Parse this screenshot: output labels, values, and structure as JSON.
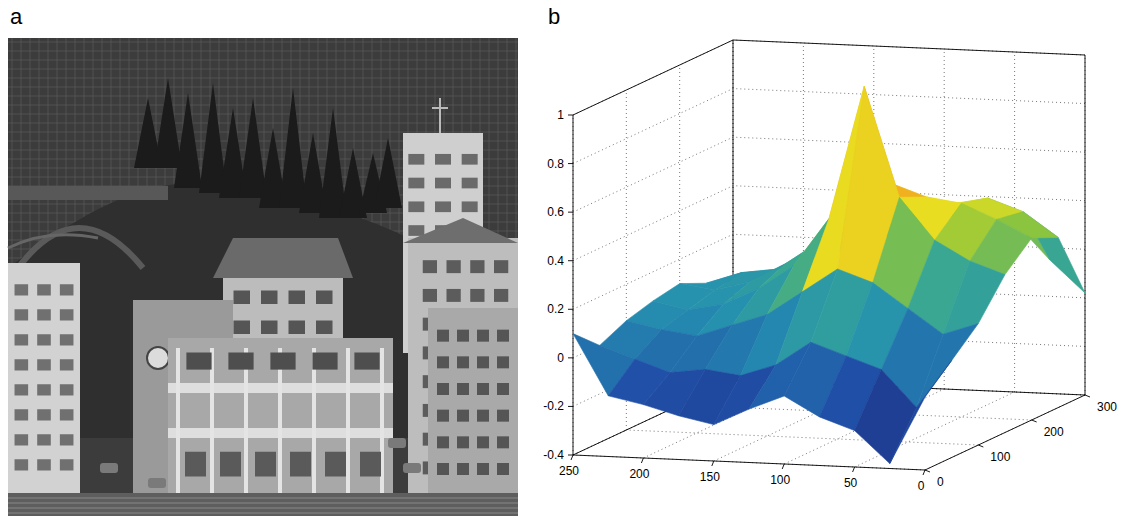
{
  "panel_labels": [
    "a",
    "b"
  ],
  "chart_data": {
    "type": "surface",
    "x": [
      0,
      25,
      50,
      75,
      100,
      125,
      150,
      175,
      200,
      225,
      250
    ],
    "y": [
      0,
      50,
      100,
      150,
      200,
      250,
      300
    ],
    "z": [
      [
        -0.1,
        -0.38,
        -0.25,
        -0.2,
        -0.12,
        -0.18,
        -0.25,
        -0.22,
        -0.18,
        -0.15,
        0.1
      ],
      [
        0.0,
        -0.2,
        -0.05,
        0.0,
        0.05,
        -0.05,
        -0.1,
        -0.08,
        -0.1,
        -0.05,
        0.0
      ],
      [
        0.1,
        0.05,
        0.15,
        0.25,
        0.3,
        0.2,
        0.1,
        0.05,
        0.0,
        0.02,
        0.05
      ],
      [
        0.25,
        0.3,
        0.38,
        0.55,
        1.0,
        0.45,
        0.25,
        0.15,
        0.08,
        0.05,
        0.08
      ],
      [
        0.35,
        0.42,
        0.48,
        0.5,
        0.55,
        0.4,
        0.3,
        0.2,
        0.12,
        0.08,
        0.1
      ],
      [
        0.3,
        0.4,
        0.45,
        0.42,
        0.38,
        0.32,
        0.25,
        0.18,
        0.12,
        0.1,
        0.05
      ],
      [
        0.02,
        0.15,
        0.3,
        0.35,
        0.3,
        0.25,
        0.2,
        0.15,
        0.1,
        0.05,
        0.0
      ]
    ],
    "xlim": [
      0,
      250
    ],
    "ylim": [
      0,
      300
    ],
    "zlim": [
      -0.4,
      1
    ],
    "xticks": [
      0,
      50,
      100,
      150,
      200,
      250
    ],
    "yticks": [
      0,
      100,
      200,
      300
    ],
    "zticks": [
      -0.4,
      -0.2,
      0,
      0.2,
      0.4,
      0.6,
      0.8,
      1
    ],
    "grid": true
  }
}
